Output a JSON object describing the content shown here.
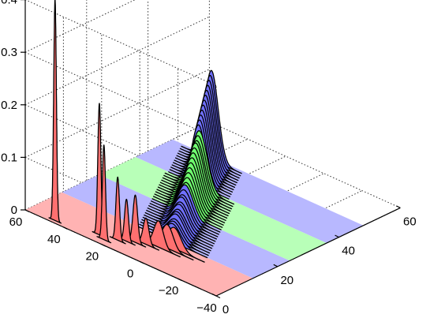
{
  "chart_data": {
    "type": "waterfall-3d",
    "title": "",
    "xlabel": "",
    "ylabel": "",
    "zlabel": "",
    "x_axis": {
      "range": [
        0,
        60
      ],
      "ticks": [
        "0",
        "20",
        "40",
        "60"
      ]
    },
    "y_axis": {
      "range": [
        -40,
        60
      ],
      "ticks": [
        "−40",
        "−20",
        "0",
        "20",
        "40",
        "60"
      ]
    },
    "z_axis": {
      "range": [
        0,
        0.4
      ],
      "ticks": [
        "0",
        "0.1",
        "0.2",
        "0.3",
        "0.4"
      ]
    },
    "grid": true,
    "floor_bands": [
      {
        "x_start": 0,
        "x_end": 12,
        "color": "#ffb3b3"
      },
      {
        "x_start": 12,
        "x_end": 24,
        "color": "#b8b8ff"
      },
      {
        "x_start": 24,
        "x_end": 36,
        "color": "#b8ffb8"
      },
      {
        "x_start": 36,
        "x_end": 48,
        "color": "#b8b8ff"
      }
    ],
    "fill_colors": {
      "red": "#ff7070",
      "blue": "#7070ff",
      "green": "#70ff70"
    },
    "traces": [
      {
        "x": 1,
        "mean": 46,
        "sd": 0.7,
        "peak": 0.42,
        "color": "red"
      },
      {
        "x": 2,
        "mean": 22,
        "sd": 0.8,
        "peak": 0.18,
        "color": "red"
      },
      {
        "x": 3,
        "mean": 26,
        "sd": 0.8,
        "peak": 0.25,
        "color": "red"
      },
      {
        "x": 4,
        "mean": 18,
        "sd": 0.9,
        "peak": 0.12,
        "color": "red"
      },
      {
        "x": 5,
        "mean": 15,
        "sd": 1.0,
        "peak": 0.08,
        "color": "red"
      },
      {
        "x": 6,
        "mean": 12,
        "sd": 1.2,
        "peak": 0.09,
        "color": "red"
      },
      {
        "x": 7,
        "mean": 8,
        "sd": 1.5,
        "peak": 0.05,
        "color": "red"
      },
      {
        "x": 8,
        "mean": 3,
        "sd": 2.5,
        "peak": 0.05,
        "color": "red"
      },
      {
        "x": 9,
        "mean": 0,
        "sd": 3.0,
        "peak": 0.045,
        "color": "red"
      },
      {
        "x": 10,
        "mean": -2,
        "sd": 3.5,
        "peak": 0.04,
        "color": "red"
      },
      {
        "x": 12,
        "mean": 2,
        "sd": 4.0,
        "peak": 0.035,
        "color": "blue"
      },
      {
        "x": 13,
        "mean": 3,
        "sd": 4.0,
        "peak": 0.035,
        "color": "blue"
      },
      {
        "x": 14,
        "mean": 4,
        "sd": 4.0,
        "peak": 0.035,
        "color": "blue"
      },
      {
        "x": 15,
        "mean": 5,
        "sd": 4.0,
        "peak": 0.04,
        "color": "blue"
      },
      {
        "x": 16,
        "mean": 6,
        "sd": 4.0,
        "peak": 0.04,
        "color": "blue"
      },
      {
        "x": 17,
        "mean": 7,
        "sd": 4.0,
        "peak": 0.04,
        "color": "blue"
      },
      {
        "x": 18,
        "mean": 8,
        "sd": 4.0,
        "peak": 0.045,
        "color": "blue"
      },
      {
        "x": 19,
        "mean": 9,
        "sd": 4.0,
        "peak": 0.045,
        "color": "blue"
      },
      {
        "x": 20,
        "mean": 10,
        "sd": 4.0,
        "peak": 0.05,
        "color": "blue"
      },
      {
        "x": 21,
        "mean": 11,
        "sd": 4.0,
        "peak": 0.05,
        "color": "blue"
      },
      {
        "x": 22,
        "mean": 12,
        "sd": 4.0,
        "peak": 0.055,
        "color": "blue"
      },
      {
        "x": 23,
        "mean": 13,
        "sd": 4.0,
        "peak": 0.06,
        "color": "blue"
      },
      {
        "x": 24,
        "mean": 14,
        "sd": 4.0,
        "peak": 0.06,
        "color": "green"
      },
      {
        "x": 25,
        "mean": 15,
        "sd": 4.0,
        "peak": 0.065,
        "color": "green"
      },
      {
        "x": 26,
        "mean": 16,
        "sd": 4.0,
        "peak": 0.07,
        "color": "green"
      },
      {
        "x": 27,
        "mean": 17,
        "sd": 4.0,
        "peak": 0.075,
        "color": "green"
      },
      {
        "x": 28,
        "mean": 18,
        "sd": 4.0,
        "peak": 0.08,
        "color": "green"
      },
      {
        "x": 29,
        "mean": 19,
        "sd": 4.0,
        "peak": 0.085,
        "color": "green"
      },
      {
        "x": 30,
        "mean": 20,
        "sd": 4.0,
        "peak": 0.09,
        "color": "green"
      },
      {
        "x": 31,
        "mean": 21,
        "sd": 4.0,
        "peak": 0.095,
        "color": "green"
      },
      {
        "x": 32,
        "mean": 22,
        "sd": 4.0,
        "peak": 0.1,
        "color": "green"
      },
      {
        "x": 33,
        "mean": 23,
        "sd": 4.0,
        "peak": 0.1,
        "color": "green"
      },
      {
        "x": 34,
        "mean": 24,
        "sd": 4.0,
        "peak": 0.105,
        "color": "green"
      },
      {
        "x": 35,
        "mean": 25,
        "sd": 4.0,
        "peak": 0.11,
        "color": "green"
      },
      {
        "x": 36,
        "mean": 27,
        "sd": 3.5,
        "peak": 0.115,
        "color": "blue"
      },
      {
        "x": 37,
        "mean": 28,
        "sd": 3.5,
        "peak": 0.12,
        "color": "blue"
      },
      {
        "x": 38,
        "mean": 29,
        "sd": 3.5,
        "peak": 0.125,
        "color": "blue"
      },
      {
        "x": 39,
        "mean": 30,
        "sd": 3.5,
        "peak": 0.13,
        "color": "blue"
      },
      {
        "x": 40,
        "mean": 31,
        "sd": 3.5,
        "peak": 0.135,
        "color": "blue"
      },
      {
        "x": 41,
        "mean": 32,
        "sd": 3.5,
        "peak": 0.14,
        "color": "blue"
      },
      {
        "x": 42,
        "mean": 33,
        "sd": 3.5,
        "peak": 0.145,
        "color": "blue"
      },
      {
        "x": 43,
        "mean": 34,
        "sd": 3.5,
        "peak": 0.15,
        "color": "blue"
      },
      {
        "x": 44,
        "mean": 35,
        "sd": 3.5,
        "peak": 0.155,
        "color": "blue"
      },
      {
        "x": 45,
        "mean": 36,
        "sd": 3.5,
        "peak": 0.16,
        "color": "blue"
      },
      {
        "x": 46,
        "mean": 37,
        "sd": 3.5,
        "peak": 0.165,
        "color": "blue"
      },
      {
        "x": 47,
        "mean": 38,
        "sd": 3.5,
        "peak": 0.17,
        "color": "blue"
      }
    ]
  }
}
